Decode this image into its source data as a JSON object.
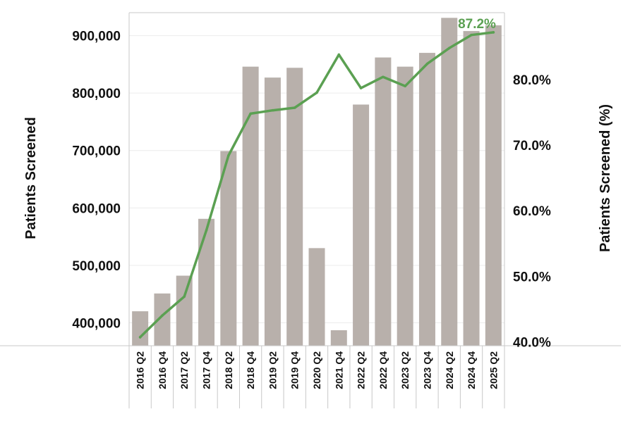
{
  "chart_data": {
    "type": "bar+line",
    "title": "",
    "categories": [
      "2016 Q2",
      "2016 Q4",
      "2017 Q2",
      "2017 Q4",
      "2018 Q2",
      "2018 Q4",
      "2019 Q2",
      "2019 Q4",
      "2020 Q2",
      "2021 Q4",
      "2022 Q2",
      "2022 Q4",
      "2023 Q2",
      "2023 Q4",
      "2024 Q2",
      "2024 Q4",
      "2025 Q2"
    ],
    "series": [
      {
        "type": "bar",
        "axis": "left",
        "values": [
          420000,
          451000,
          482000,
          581000,
          699000,
          846000,
          827000,
          844000,
          530000,
          387000,
          780000,
          862000,
          846000,
          870000,
          931000,
          908000,
          918000
        ]
      },
      {
        "type": "line",
        "axis": "right",
        "values": [
          40.7,
          44.0,
          46.9,
          57.0,
          68.4,
          74.8,
          75.3,
          75.7,
          78.0,
          83.8,
          78.7,
          80.4,
          79.0,
          82.4,
          84.8,
          86.8,
          87.2
        ]
      }
    ],
    "ylabel": "Patients Screened",
    "y2label": "Patients Screened (%)",
    "ylim": [
      360000,
      940000
    ],
    "y2lim": [
      39.4,
      90.2
    ],
    "yticks": [
      "400,000",
      "500,000",
      "600,000",
      "700,000",
      "800,000",
      "900,000"
    ],
    "y2ticks": [
      "40.0%",
      "50.0%",
      "60.0%",
      "70.0%",
      "80.0%"
    ],
    "peak_label": "87.2%",
    "colors": {
      "bar": "#b8b0ab",
      "line": "#5ba052",
      "peak_label": "#5ba052",
      "grid": "#ececec",
      "axis": "#c8c8c8"
    },
    "grid": true,
    "legend": "none"
  }
}
